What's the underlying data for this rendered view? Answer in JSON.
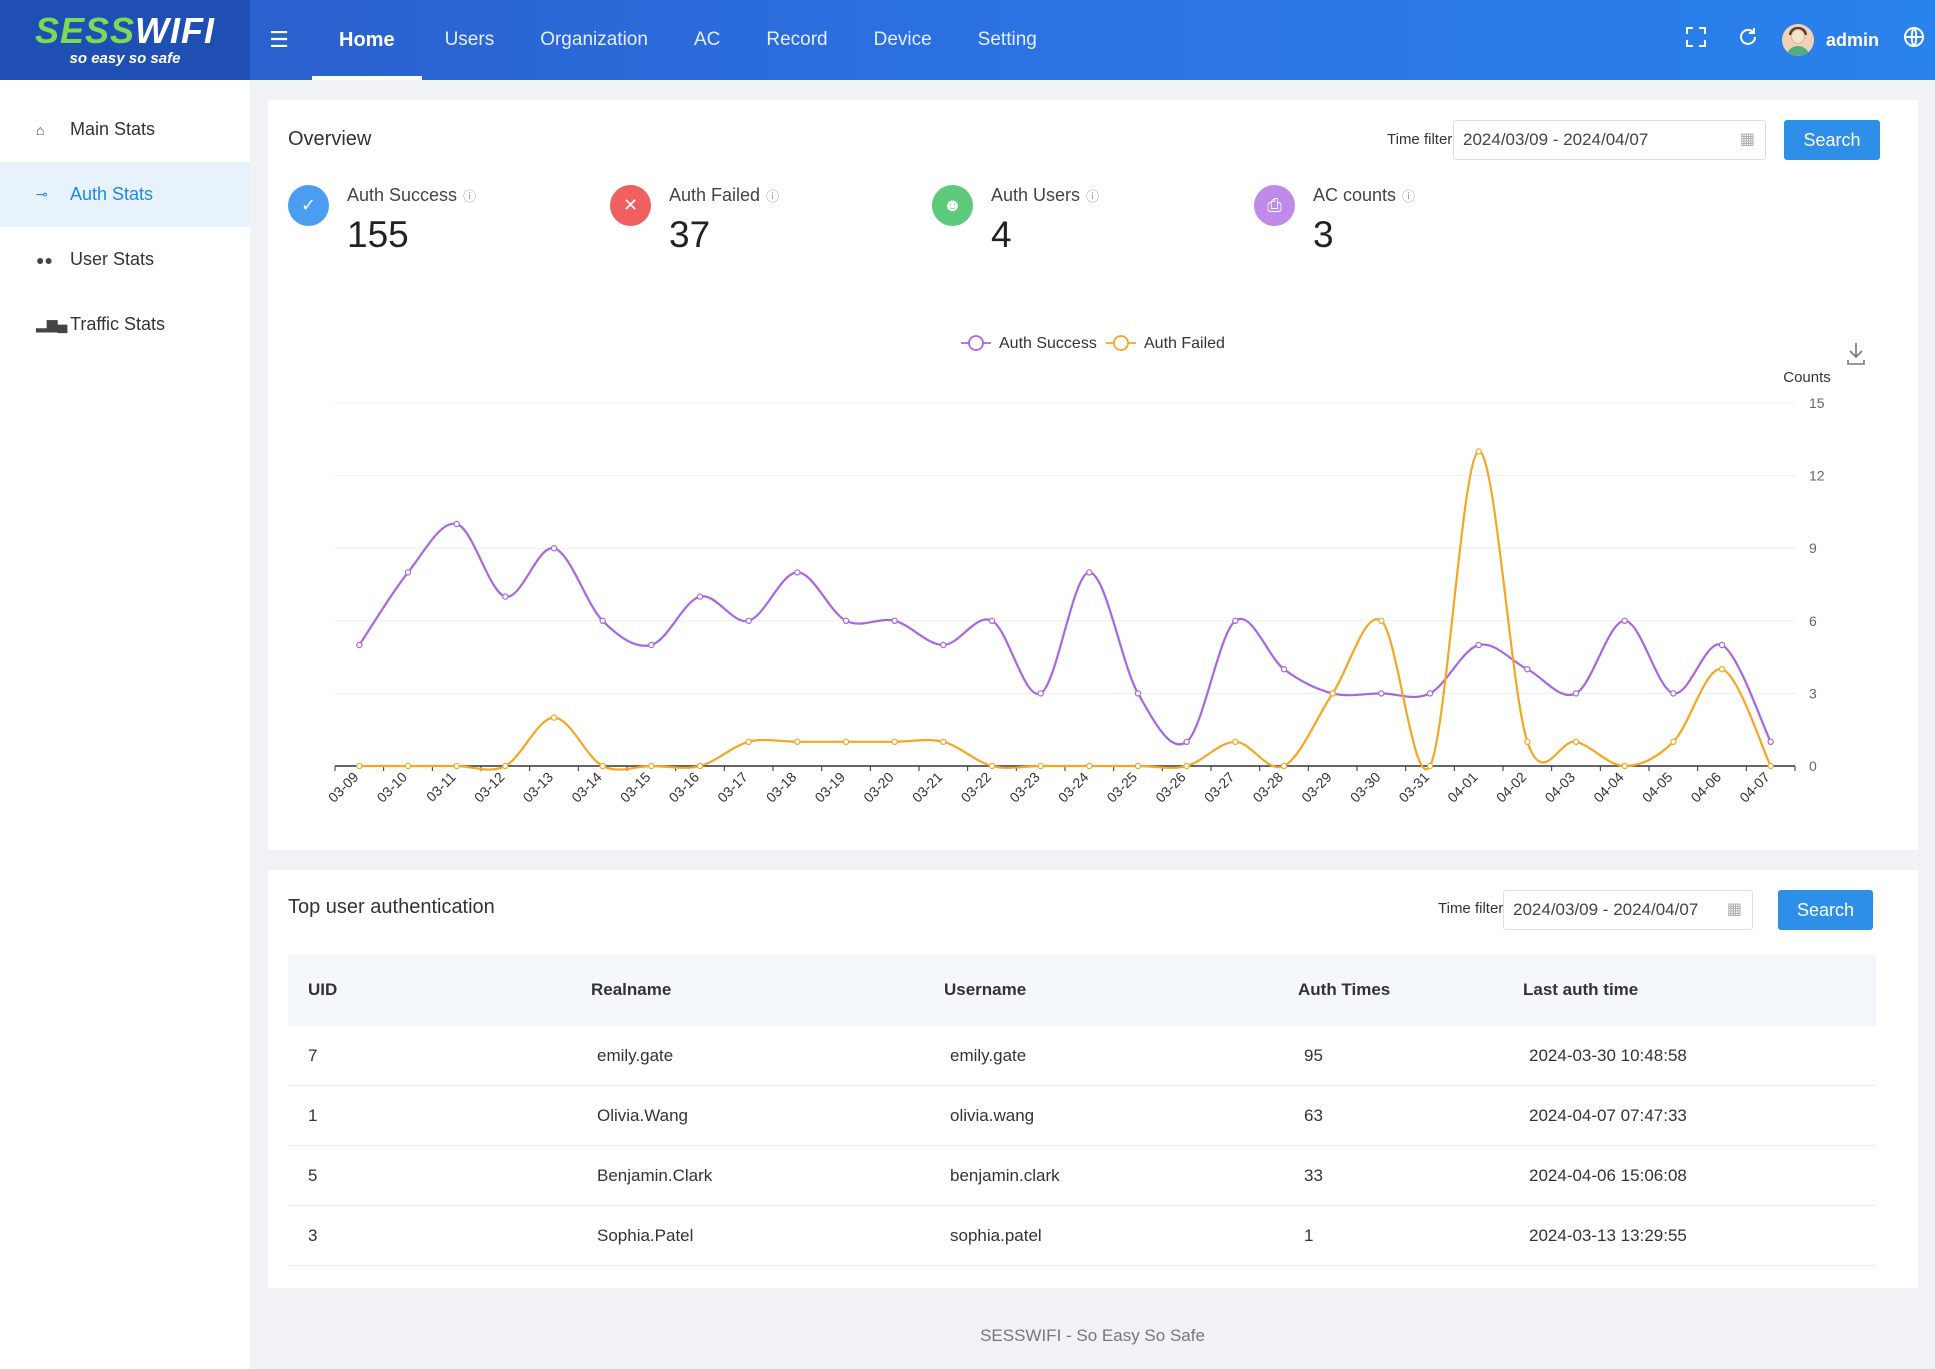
{
  "header": {
    "logo_main_1": "SESS",
    "logo_main_2": "WIFI",
    "logo_sub": "so easy so safe",
    "nav": [
      "Home",
      "Users",
      "Organization",
      "AC",
      "Record",
      "Device",
      "Setting"
    ],
    "active_nav": "Home",
    "user": "admin",
    "icons": [
      "menu-fold-icon",
      "fullscreen-icon",
      "refresh-icon",
      "globe-icon"
    ]
  },
  "sidebar": {
    "items": [
      {
        "label": "Main Stats",
        "icon": "home-icon"
      },
      {
        "label": "Auth Stats",
        "icon": "key-icon",
        "active": true
      },
      {
        "label": "User Stats",
        "icon": "users-icon"
      },
      {
        "label": "Traffic Stats",
        "icon": "bar-chart-icon"
      }
    ]
  },
  "overview": {
    "title": "Overview",
    "time_filter_label": "Time filter",
    "date_range": "2024/03/09 - 2024/04/07",
    "search_label": "Search",
    "stats": [
      {
        "label": "Auth Success",
        "value": "155",
        "color": "#4a9df0",
        "icon": "check-icon"
      },
      {
        "label": "Auth Failed",
        "value": "37",
        "color": "#f06060",
        "icon": "close-icon"
      },
      {
        "label": "Auth Users",
        "value": "4",
        "color": "#5cc97b",
        "icon": "users-icon"
      },
      {
        "label": "AC counts",
        "value": "3",
        "color": "#c08be8",
        "icon": "printer-icon"
      }
    ]
  },
  "chart_data": {
    "type": "line",
    "smooth": true,
    "ylabel": "Counts",
    "ylim": [
      0,
      15
    ],
    "yticks": [
      0,
      3,
      6,
      9,
      12,
      15
    ],
    "y_axis_position": "right",
    "legend_position": "top-center",
    "grid": true,
    "categories": [
      "03-09",
      "03-10",
      "03-11",
      "03-12",
      "03-13",
      "03-14",
      "03-15",
      "03-16",
      "03-17",
      "03-18",
      "03-19",
      "03-20",
      "03-21",
      "03-22",
      "03-23",
      "03-24",
      "03-25",
      "03-26",
      "03-27",
      "03-28",
      "03-29",
      "03-30",
      "03-31",
      "04-01",
      "04-02",
      "04-03",
      "04-04",
      "04-05",
      "04-06",
      "04-07"
    ],
    "series": [
      {
        "name": "Auth Success",
        "color": "#a866e0",
        "values": [
          5,
          8,
          10,
          7,
          9,
          6,
          5,
          7,
          6,
          8,
          6,
          6,
          5,
          6,
          3,
          8,
          3,
          1,
          6,
          4,
          3,
          3,
          3,
          5,
          4,
          3,
          6,
          3,
          5,
          1
        ]
      },
      {
        "name": "Auth Failed",
        "color": "#f5a623",
        "values": [
          0,
          0,
          0,
          0,
          2,
          0,
          0,
          0,
          1,
          1,
          1,
          1,
          1,
          0,
          0,
          0,
          0,
          0,
          1,
          0,
          3,
          6,
          0,
          13,
          1,
          1,
          0,
          1,
          4,
          0
        ]
      }
    ]
  },
  "top_users": {
    "title": "Top user authentication",
    "time_filter_label": "Time filter",
    "date_range": "2024/03/09 - 2024/04/07",
    "search_label": "Search",
    "columns": [
      "UID",
      "Realname",
      "Username",
      "Auth Times",
      "Last auth time"
    ],
    "rows": [
      [
        "7",
        "emily.gate",
        "emily.gate",
        "95",
        "2024-03-30 10:48:58"
      ],
      [
        "1",
        "Olivia.Wang",
        "olivia.wang",
        "63",
        "2024-04-07 07:47:33"
      ],
      [
        "5",
        "Benjamin.Clark",
        "benjamin.clark",
        "33",
        "2024-04-06 15:06:08"
      ],
      [
        "3",
        "Sophia.Patel",
        "sophia.patel",
        "1",
        "2024-03-13 13:29:55"
      ]
    ]
  },
  "footer": "SESSWIFI - So Easy So Safe"
}
